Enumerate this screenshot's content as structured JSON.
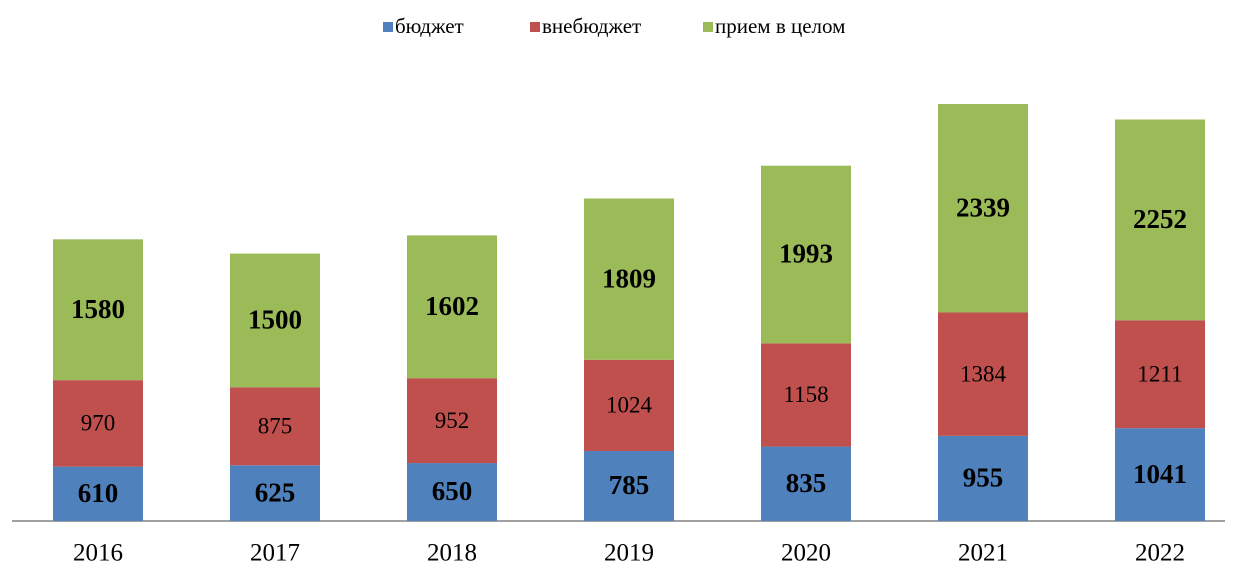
{
  "chart_data": {
    "type": "stacked_bar",
    "categories": [
      "2016",
      "2017",
      "2018",
      "2019",
      "2020",
      "2021",
      "2022"
    ],
    "series": [
      {
        "name": "бюджет",
        "color": "#4f81bd",
        "values": [
          610,
          625,
          650,
          785,
          835,
          955,
          1041
        ]
      },
      {
        "name": "внебюджет",
        "color": "#c0504d",
        "values": [
          970,
          875,
          952,
          1024,
          1158,
          1384,
          1211
        ]
      },
      {
        "name": "прием в целом",
        "color": "#9bbb59",
        "values": [
          1580,
          1500,
          1602,
          1809,
          1993,
          2339,
          2252
        ]
      }
    ],
    "legend": "top"
  }
}
